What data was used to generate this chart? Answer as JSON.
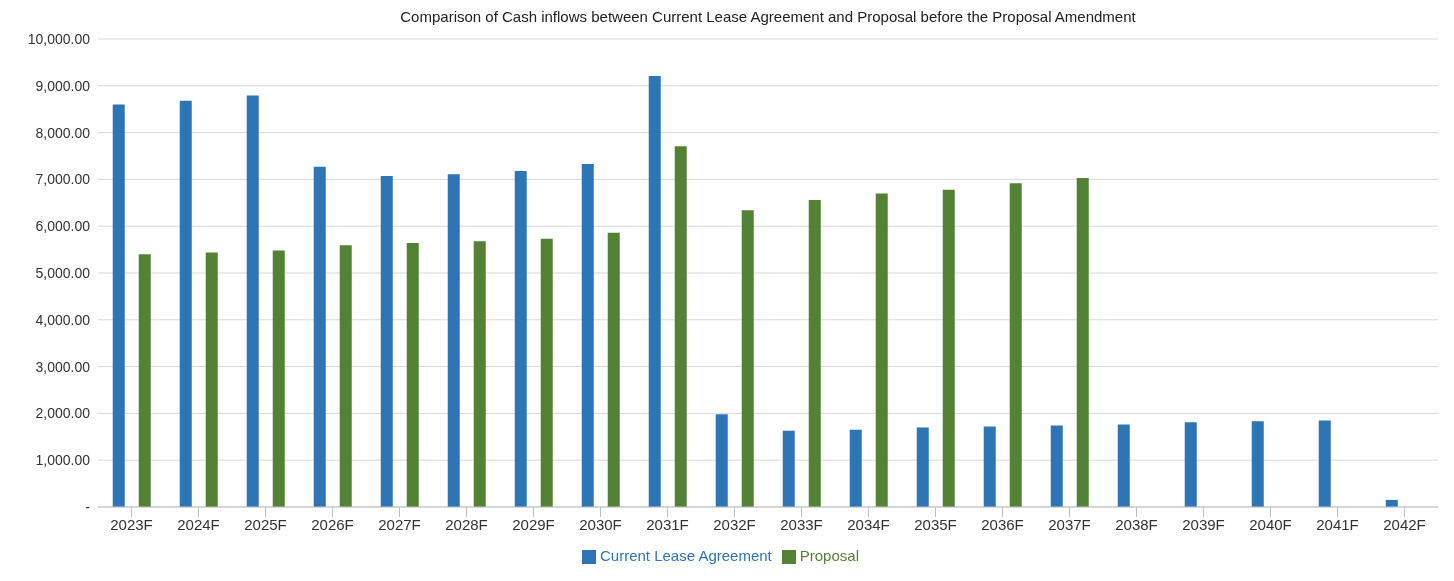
{
  "chart_data": {
    "type": "bar",
    "title": "Comparison of Cash inflows between Current Lease Agreement and Proposal before the Proposal Amendment",
    "categories": [
      "2023F",
      "2024F",
      "2025F",
      "2026F",
      "2027F",
      "2028F",
      "2029F",
      "2030F",
      "2031F",
      "2032F",
      "2033F",
      "2034F",
      "2035F",
      "2036F",
      "2037F",
      "2038F",
      "2039F",
      "2040F",
      "2041F",
      "2042F"
    ],
    "series": [
      {
        "name": "Current Lease Agreement",
        "color": "#2e75b6",
        "values": [
          8600,
          8680,
          8790,
          7270,
          7070,
          7110,
          7180,
          7330,
          9210,
          1980,
          1630,
          1650,
          1700,
          1720,
          1740,
          1760,
          1810,
          1830,
          1850,
          150
        ]
      },
      {
        "name": "Proposal",
        "color": "#548235",
        "values": [
          5400,
          5440,
          5480,
          5590,
          5640,
          5680,
          5730,
          5860,
          7710,
          6340,
          6560,
          6700,
          6780,
          6920,
          7030,
          null,
          null,
          null,
          null,
          null
        ]
      }
    ],
    "ylim": [
      0,
      10000
    ],
    "yticks": [
      {
        "value": 0,
        "label": "-"
      },
      {
        "value": 1000,
        "label": "1,000.00"
      },
      {
        "value": 2000,
        "label": "2,000.00"
      },
      {
        "value": 3000,
        "label": "3,000.00"
      },
      {
        "value": 4000,
        "label": "4,000.00"
      },
      {
        "value": 5000,
        "label": "5,000.00"
      },
      {
        "value": 6000,
        "label": "6,000.00"
      },
      {
        "value": 7000,
        "label": "7,000.00"
      },
      {
        "value": 8000,
        "label": "8,000.00"
      },
      {
        "value": 9000,
        "label": "9,000.00"
      },
      {
        "value": 10000,
        "label": "10,000.00"
      }
    ],
    "grid": "y",
    "legend": "bottom"
  }
}
